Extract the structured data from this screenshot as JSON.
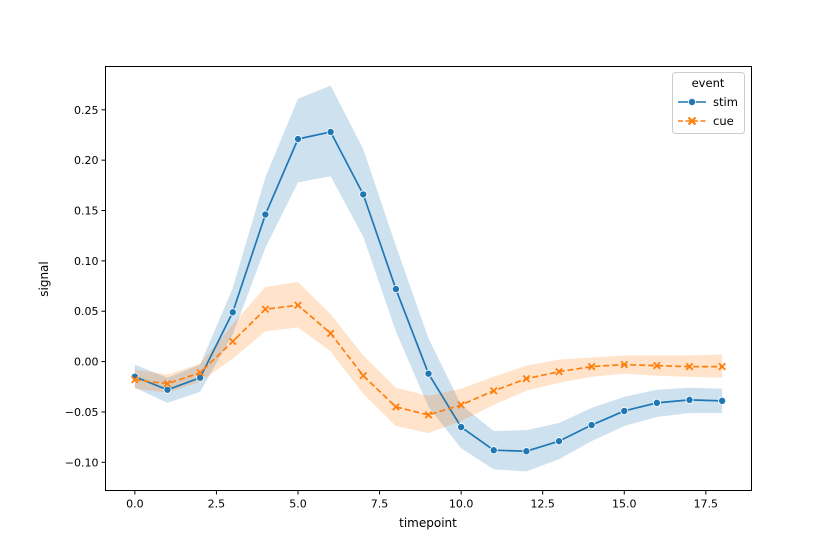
{
  "chart_data": {
    "type": "line",
    "xlabel": "timepoint",
    "ylabel": "signal",
    "xlim": [
      -0.9,
      18.9
    ],
    "ylim": [
      -0.128,
      0.293
    ],
    "xticks": [
      0.0,
      2.5,
      5.0,
      7.5,
      10.0,
      12.5,
      15.0,
      17.5
    ],
    "xtick_labels": [
      "0.0",
      "2.5",
      "5.0",
      "7.5",
      "10.0",
      "12.5",
      "15.0",
      "17.5"
    ],
    "yticks": [
      -0.1,
      -0.05,
      0.0,
      0.05,
      0.1,
      0.15,
      0.2,
      0.25
    ],
    "ytick_labels": [
      "−0.10",
      "−0.05",
      "0.00",
      "0.05",
      "0.10",
      "0.15",
      "0.20",
      "0.25"
    ],
    "grid": false,
    "legend": {
      "title": "event",
      "placement": "top-right"
    },
    "x": [
      0,
      1,
      2,
      3,
      4,
      5,
      6,
      7,
      8,
      9,
      10,
      11,
      12,
      13,
      14,
      15,
      16,
      17,
      18
    ],
    "series": [
      {
        "name": "stim",
        "color": "#1f77b4",
        "marker": "circle",
        "linestyle": "solid",
        "values": [
          -0.015,
          -0.028,
          -0.016,
          0.049,
          0.146,
          0.221,
          0.228,
          0.166,
          0.072,
          -0.012,
          -0.065,
          -0.088,
          -0.089,
          -0.079,
          -0.063,
          -0.049,
          -0.041,
          -0.038,
          -0.039
        ],
        "ci_low": [
          -0.026,
          -0.041,
          -0.03,
          0.027,
          0.113,
          0.178,
          0.184,
          0.124,
          0.03,
          -0.045,
          -0.086,
          -0.107,
          -0.109,
          -0.097,
          -0.079,
          -0.064,
          -0.055,
          -0.051,
          -0.051
        ],
        "ci_high": [
          -0.003,
          -0.016,
          -0.003,
          0.073,
          0.183,
          0.261,
          0.274,
          0.211,
          0.115,
          0.023,
          -0.043,
          -0.069,
          -0.068,
          -0.061,
          -0.046,
          -0.035,
          -0.028,
          -0.026,
          -0.027
        ]
      },
      {
        "name": "cue",
        "color": "#ff7f0e",
        "marker": "x",
        "linestyle": "dashed",
        "values": [
          -0.018,
          -0.022,
          -0.011,
          0.02,
          0.052,
          0.056,
          0.028,
          -0.014,
          -0.045,
          -0.053,
          -0.043,
          -0.029,
          -0.017,
          -0.01,
          -0.005,
          -0.003,
          -0.004,
          -0.005,
          -0.005
        ],
        "ci_low": [
          -0.027,
          -0.031,
          -0.02,
          0.003,
          0.03,
          0.034,
          0.01,
          -0.032,
          -0.064,
          -0.071,
          -0.059,
          -0.043,
          -0.029,
          -0.021,
          -0.015,
          -0.012,
          -0.014,
          -0.015,
          -0.016
        ],
        "ci_high": [
          -0.008,
          -0.013,
          -0.002,
          0.037,
          0.074,
          0.079,
          0.047,
          0.006,
          -0.026,
          -0.034,
          -0.027,
          -0.015,
          -0.004,
          0.002,
          0.004,
          0.006,
          0.006,
          0.006,
          0.007
        ]
      }
    ]
  }
}
